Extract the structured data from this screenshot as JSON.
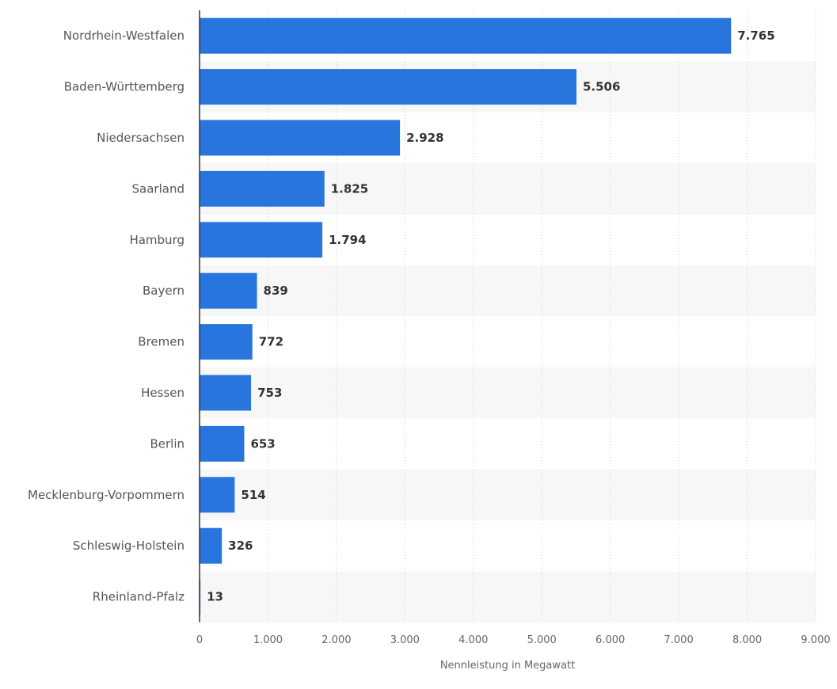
{
  "chart_data": {
    "type": "bar",
    "orientation": "horizontal",
    "categories": [
      "Nordrhein-Westfalen",
      "Baden-Württemberg",
      "Niedersachsen",
      "Saarland",
      "Hamburg",
      "Bayern",
      "Bremen",
      "Hessen",
      "Berlin",
      "Mecklenburg-Vorpommern",
      "Schleswig-Holstein",
      "Rheinland-Pfalz"
    ],
    "values": [
      7765,
      5506,
      2928,
      1825,
      1794,
      839,
      772,
      753,
      653,
      514,
      326,
      13
    ],
    "value_labels": [
      "7.765",
      "5.506",
      "2.928",
      "1.825",
      "1.794",
      "839",
      "772",
      "753",
      "653",
      "514",
      "326",
      "13"
    ],
    "xlabel": "Nennleistung in Megawatt",
    "ylabel": "",
    "xlim": [
      0,
      9000
    ],
    "x_ticks": [
      0,
      1000,
      2000,
      3000,
      4000,
      5000,
      6000,
      7000,
      8000,
      9000
    ],
    "x_tick_labels": [
      "0",
      "1.000",
      "2.000",
      "3.000",
      "4.000",
      "5.000",
      "6.000",
      "7.000",
      "8.000",
      "9.000"
    ],
    "grid": true,
    "colors": {
      "bar": "#2876dd",
      "band": "#f7f7f7",
      "grid": "#cccccc",
      "axis": "#333333"
    }
  }
}
